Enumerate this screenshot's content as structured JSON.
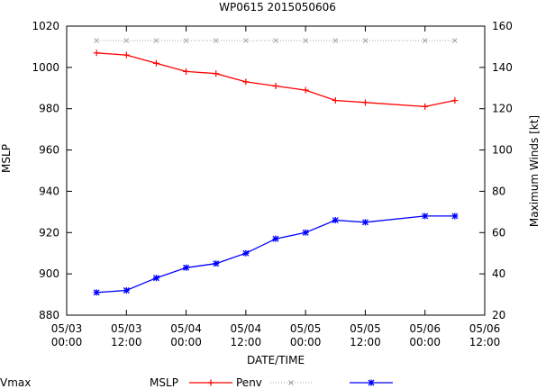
{
  "chart_data": {
    "type": "line",
    "title": "WP0615 2015050606",
    "xlabel": "DATE/TIME",
    "ylabel": "MSLP",
    "y2label": "Maximum Winds [kt]",
    "x_hours": [
      0,
      12,
      24,
      36,
      48,
      60,
      72
    ],
    "x_ticks": [
      {
        "h": 0,
        "date": "05/03",
        "time": "00:00"
      },
      {
        "h": 12,
        "date": "05/03",
        "time": "12:00"
      },
      {
        "h": 24,
        "date": "05/04",
        "time": "00:00"
      },
      {
        "h": 36,
        "date": "05/04",
        "time": "12:00"
      },
      {
        "h": 48,
        "date": "05/05",
        "time": "00:00"
      },
      {
        "h": 60,
        "date": "05/05",
        "time": "12:00"
      },
      {
        "h": 72,
        "date": "05/06",
        "time": "00:00"
      },
      {
        "h": 84,
        "date": "05/06",
        "time": "12:00"
      }
    ],
    "ylim": [
      880,
      1020
    ],
    "y_ticks": [
      880,
      900,
      920,
      940,
      960,
      980,
      1000,
      1020
    ],
    "y2lim": [
      20,
      160
    ],
    "y2_ticks": [
      20,
      40,
      60,
      80,
      100,
      120,
      140,
      160
    ],
    "legend_title": "MSLP",
    "legend_placement": "bottom",
    "grid": false,
    "series": [
      {
        "name": "Penv",
        "axis": "y",
        "color": "#ff0000",
        "marker": "plus",
        "line": "solid",
        "x": [
          6,
          12,
          18,
          24,
          30,
          36,
          42,
          48,
          54,
          60,
          72,
          78
        ],
        "values": [
          1007,
          1006,
          1002,
          998,
          997,
          993,
          991,
          989,
          984,
          983,
          981,
          984
        ]
      },
      {
        "name": "",
        "axis": "y",
        "color": "#a0a0a0",
        "marker": "x",
        "line": "dotted",
        "x": [
          6,
          12,
          18,
          24,
          30,
          36,
          42,
          48,
          54,
          60,
          72,
          78
        ],
        "values": [
          1013,
          1013,
          1013,
          1013,
          1013,
          1013,
          1013,
          1013,
          1013,
          1013,
          1013,
          1013
        ]
      },
      {
        "name": "Vmax",
        "axis": "y2",
        "color": "#0000ff",
        "marker": "star",
        "line": "solid",
        "x": [
          6,
          12,
          18,
          24,
          30,
          36,
          42,
          48,
          54,
          60,
          72,
          78
        ],
        "values": [
          31,
          32,
          38,
          43,
          45,
          50,
          57,
          60,
          66,
          65,
          68,
          68
        ]
      }
    ]
  }
}
